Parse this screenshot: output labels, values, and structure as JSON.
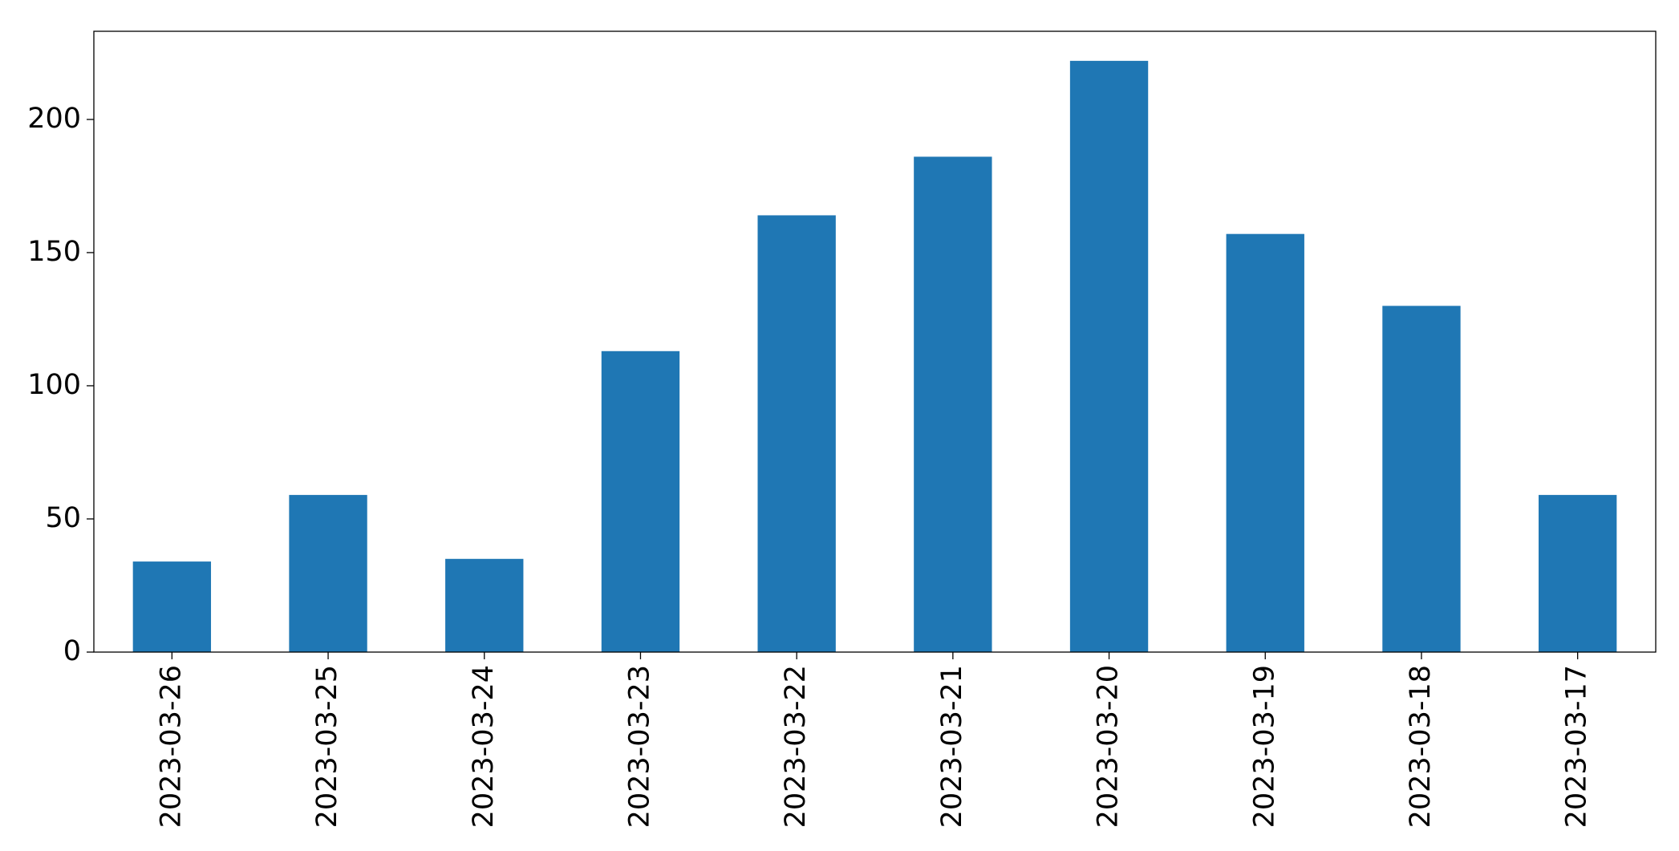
{
  "chart_data": {
    "type": "bar",
    "categories": [
      "2023-03-26",
      "2023-03-25",
      "2023-03-24",
      "2023-03-23",
      "2023-03-22",
      "2023-03-21",
      "2023-03-20",
      "2023-03-19",
      "2023-03-18",
      "2023-03-17"
    ],
    "values": [
      34,
      59,
      35,
      113,
      164,
      186,
      222,
      157,
      130,
      59
    ],
    "color": "#1f77b4",
    "ylim": [
      0,
      233.1
    ],
    "yticks": [
      0,
      50,
      100,
      150,
      200
    ],
    "grid": false
  }
}
